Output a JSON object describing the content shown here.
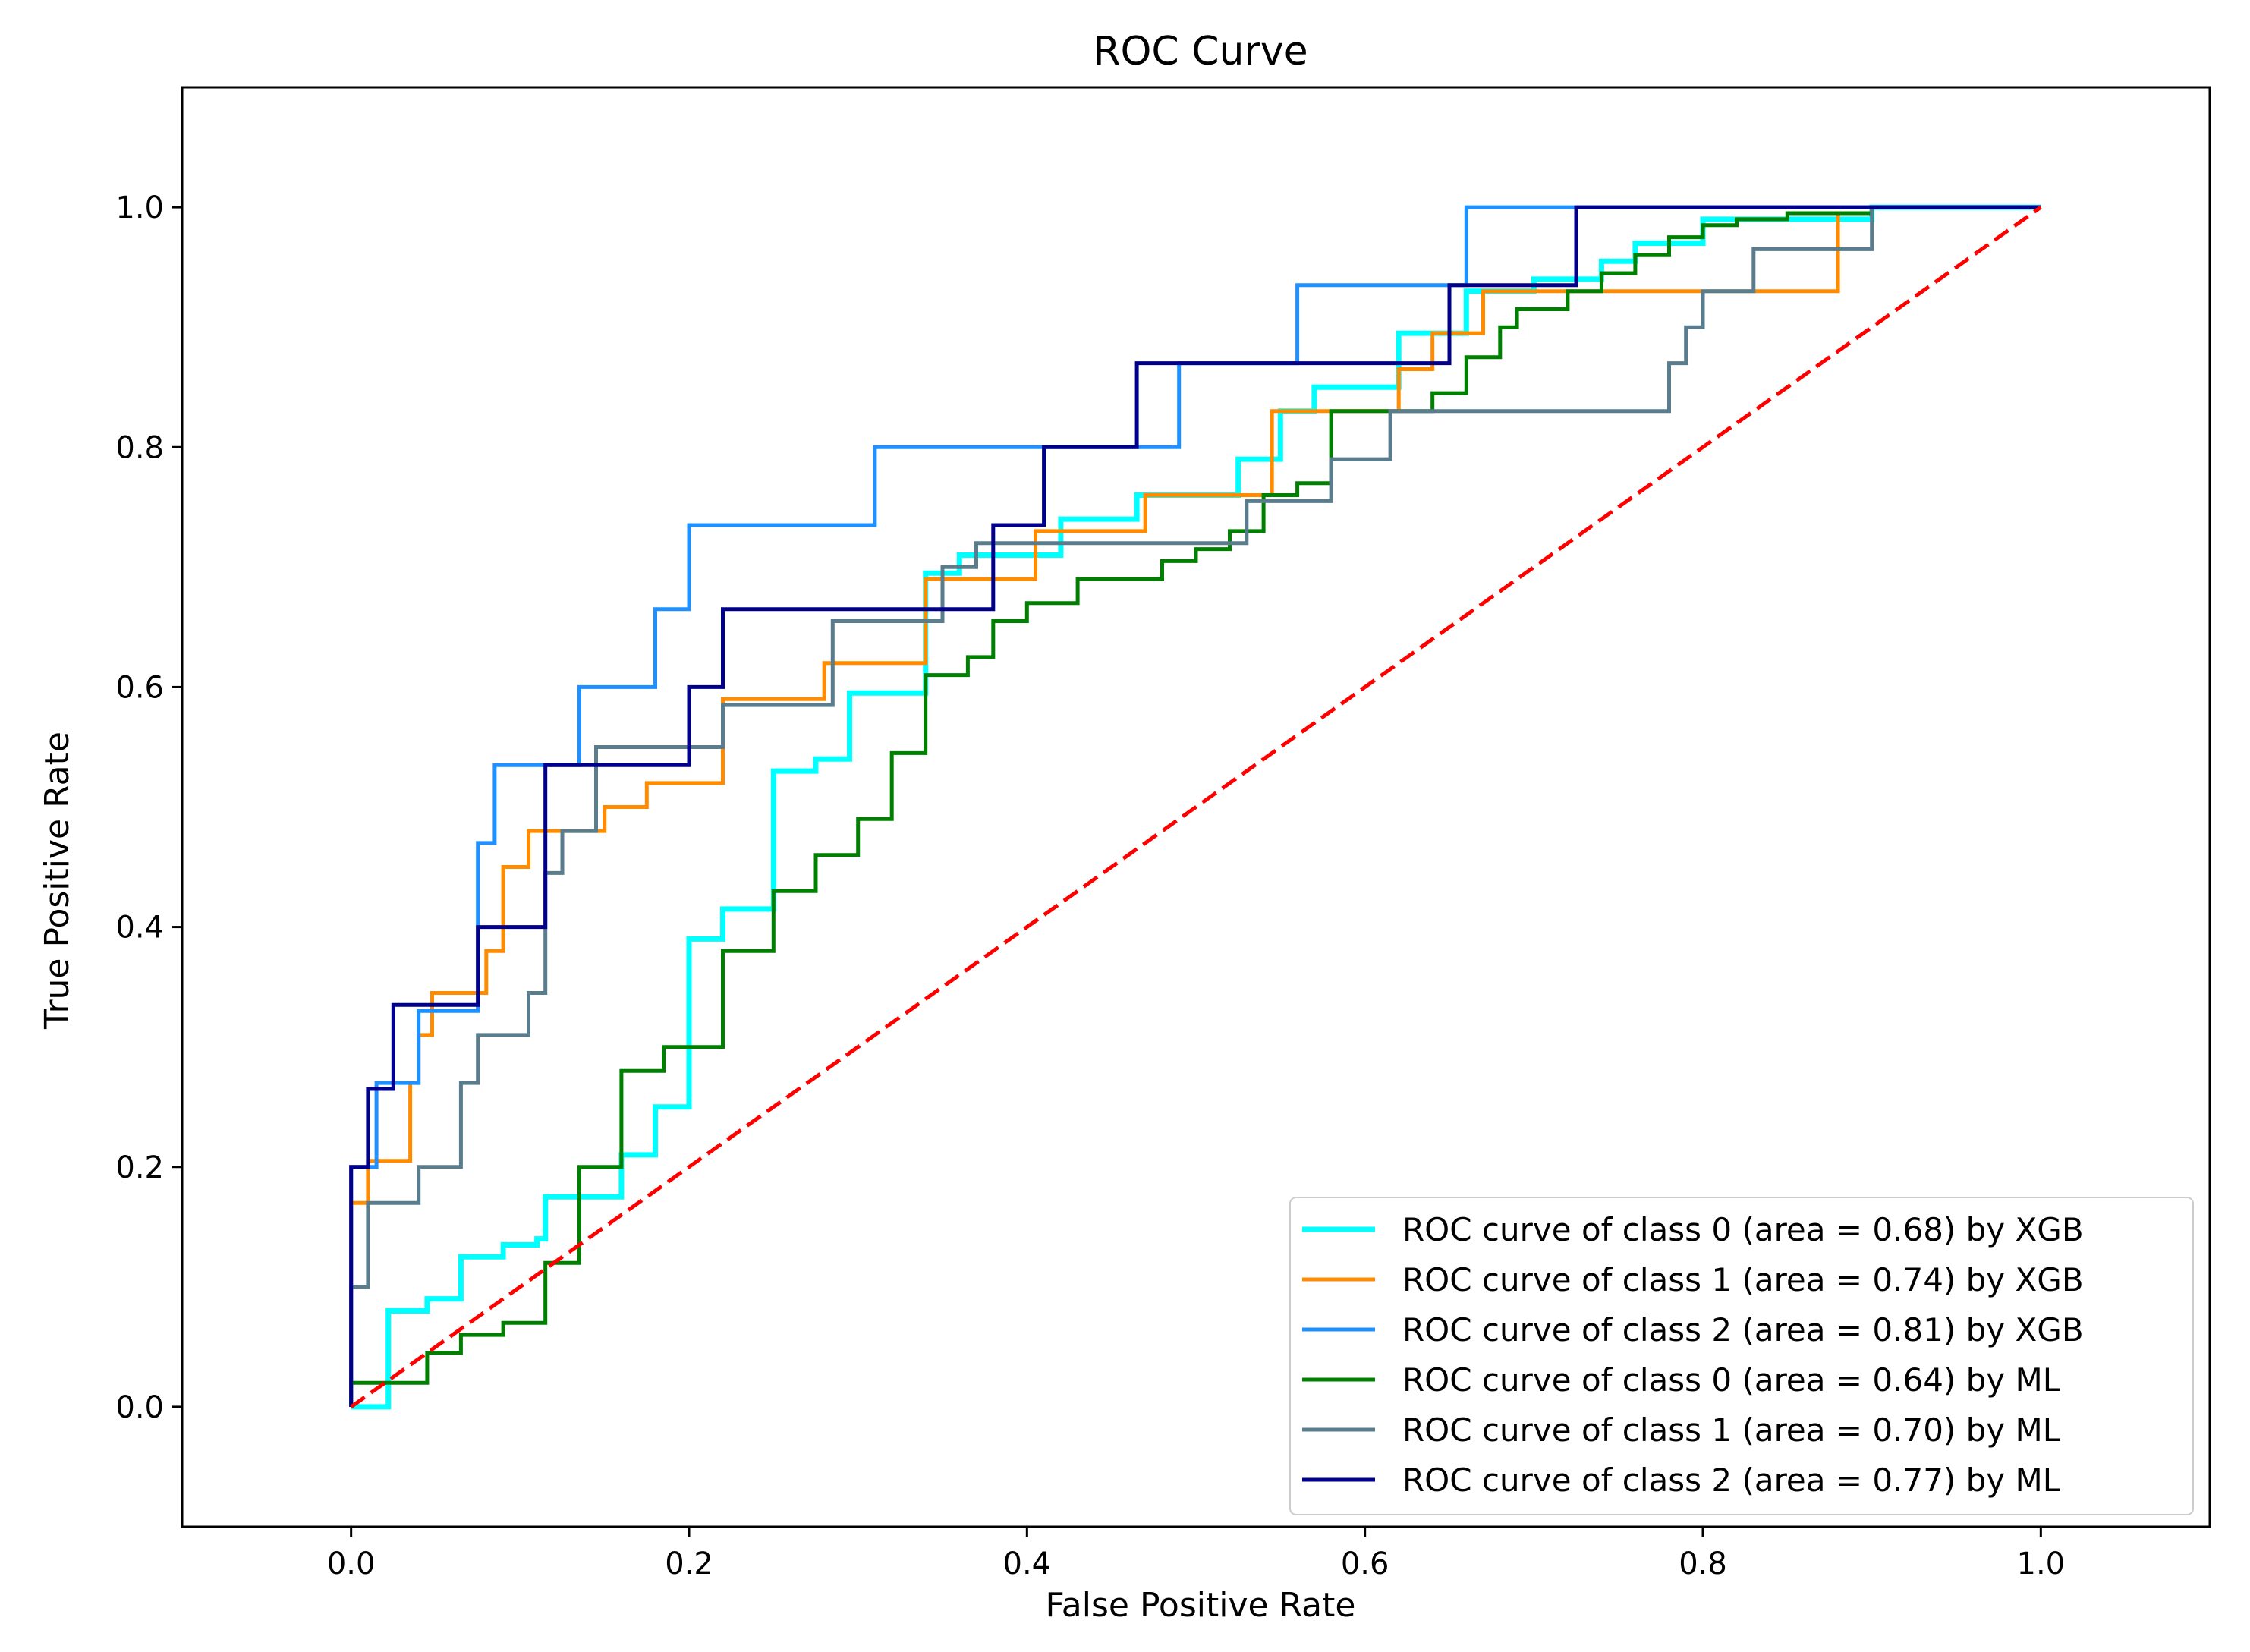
{
  "chart_data": {
    "type": "line",
    "title": "ROC Curve",
    "xlabel": "False Positive Rate",
    "ylabel": "True Positive Rate",
    "xlim": [
      -0.1,
      1.1
    ],
    "ylim": [
      -0.1,
      1.1
    ],
    "xticks": [
      0.0,
      0.2,
      0.4,
      0.6,
      0.8,
      1.0
    ],
    "xtick_labels": [
      "0.0",
      "0.2",
      "0.4",
      "0.6",
      "0.8",
      "1.0"
    ],
    "yticks": [
      0.0,
      0.2,
      0.4,
      0.6,
      0.8,
      1.0
    ],
    "ytick_labels": [
      "0.0",
      "0.2",
      "0.4",
      "0.6",
      "0.8",
      "1.0"
    ],
    "grid": false,
    "legend_position": "lower-right",
    "diagonal": {
      "x": [
        0,
        1
      ],
      "y": [
        0,
        1
      ],
      "color": "#ff0000",
      "style": "dashed"
    },
    "series": [
      {
        "name": "ROC curve of class 0 (area = 0.68) by XGB",
        "color": "#00ffff",
        "x": [
          0.0,
          0.0,
          0.022,
          0.022,
          0.045,
          0.045,
          0.065,
          0.065,
          0.09,
          0.09,
          0.11,
          0.11,
          0.115,
          0.115,
          0.16,
          0.16,
          0.18,
          0.18,
          0.2,
          0.2,
          0.22,
          0.22,
          0.25,
          0.25,
          0.275,
          0.275,
          0.295,
          0.295,
          0.34,
          0.34,
          0.36,
          0.36,
          0.42,
          0.42,
          0.465,
          0.465,
          0.525,
          0.525,
          0.55,
          0.55,
          0.57,
          0.57,
          0.62,
          0.62,
          0.66,
          0.66,
          0.7,
          0.7,
          0.74,
          0.74,
          0.76,
          0.76,
          0.8,
          0.8,
          0.9,
          0.9,
          1.0
        ],
        "y": [
          0.0,
          0.0,
          0.0,
          0.08,
          0.08,
          0.09,
          0.09,
          0.125,
          0.125,
          0.135,
          0.135,
          0.14,
          0.14,
          0.175,
          0.175,
          0.21,
          0.21,
          0.25,
          0.25,
          0.39,
          0.39,
          0.415,
          0.415,
          0.53,
          0.53,
          0.54,
          0.54,
          0.595,
          0.595,
          0.695,
          0.695,
          0.71,
          0.71,
          0.74,
          0.74,
          0.76,
          0.76,
          0.79,
          0.79,
          0.83,
          0.83,
          0.85,
          0.85,
          0.895,
          0.895,
          0.93,
          0.93,
          0.94,
          0.94,
          0.955,
          0.955,
          0.97,
          0.97,
          0.99,
          0.99,
          1.0,
          1.0
        ]
      },
      {
        "name": "ROC curve of class 1 (area = 0.74) by XGB",
        "color": "#ff8c00",
        "x": [
          0.0,
          0.0,
          0.01,
          0.01,
          0.035,
          0.035,
          0.04,
          0.04,
          0.048,
          0.048,
          0.08,
          0.08,
          0.09,
          0.09,
          0.105,
          0.105,
          0.15,
          0.15,
          0.175,
          0.175,
          0.22,
          0.22,
          0.28,
          0.28,
          0.34,
          0.34,
          0.405,
          0.405,
          0.47,
          0.47,
          0.545,
          0.545,
          0.62,
          0.62,
          0.64,
          0.64,
          0.67,
          0.67,
          0.73,
          0.73,
          0.88,
          0.88,
          0.9,
          0.9,
          1.0
        ],
        "y": [
          0.0,
          0.17,
          0.17,
          0.205,
          0.205,
          0.27,
          0.27,
          0.31,
          0.31,
          0.345,
          0.345,
          0.38,
          0.38,
          0.45,
          0.45,
          0.48,
          0.48,
          0.5,
          0.5,
          0.52,
          0.52,
          0.59,
          0.59,
          0.62,
          0.62,
          0.69,
          0.69,
          0.73,
          0.73,
          0.76,
          0.76,
          0.83,
          0.83,
          0.865,
          0.865,
          0.895,
          0.895,
          0.93,
          0.93,
          0.93,
          0.93,
          0.995,
          0.995,
          1.0,
          1.0
        ]
      },
      {
        "name": "ROC curve of class 2 (area = 0.81) by XGB",
        "color": "#1e90ff",
        "x": [
          0.0,
          0.0,
          0.015,
          0.015,
          0.04,
          0.04,
          0.075,
          0.075,
          0.085,
          0.085,
          0.135,
          0.135,
          0.18,
          0.18,
          0.2,
          0.2,
          0.31,
          0.31,
          0.49,
          0.49,
          0.56,
          0.56,
          0.66,
          0.66,
          1.0
        ],
        "y": [
          0.0,
          0.2,
          0.2,
          0.27,
          0.27,
          0.33,
          0.33,
          0.47,
          0.47,
          0.535,
          0.535,
          0.6,
          0.6,
          0.665,
          0.665,
          0.735,
          0.735,
          0.8,
          0.8,
          0.87,
          0.87,
          0.935,
          0.935,
          1.0,
          1.0
        ]
      },
      {
        "name": "ROC curve of class 0 (area = 0.64) by ML",
        "color": "#008000",
        "x": [
          0.0,
          0.0,
          0.045,
          0.045,
          0.065,
          0.065,
          0.09,
          0.09,
          0.115,
          0.115,
          0.135,
          0.135,
          0.16,
          0.16,
          0.185,
          0.185,
          0.22,
          0.22,
          0.25,
          0.25,
          0.275,
          0.275,
          0.3,
          0.3,
          0.32,
          0.32,
          0.34,
          0.34,
          0.365,
          0.365,
          0.38,
          0.38,
          0.4,
          0.4,
          0.43,
          0.43,
          0.48,
          0.48,
          0.5,
          0.5,
          0.52,
          0.52,
          0.54,
          0.54,
          0.56,
          0.56,
          0.58,
          0.58,
          0.64,
          0.64,
          0.66,
          0.66,
          0.68,
          0.68,
          0.69,
          0.69,
          0.72,
          0.72,
          0.74,
          0.74,
          0.76,
          0.76,
          0.78,
          0.78,
          0.8,
          0.8,
          0.82,
          0.82,
          0.85,
          0.85,
          0.9,
          0.9,
          1.0
        ],
        "y": [
          0.0,
          0.02,
          0.02,
          0.045,
          0.045,
          0.06,
          0.06,
          0.07,
          0.07,
          0.12,
          0.12,
          0.2,
          0.2,
          0.28,
          0.28,
          0.3,
          0.3,
          0.38,
          0.38,
          0.43,
          0.43,
          0.46,
          0.46,
          0.49,
          0.49,
          0.545,
          0.545,
          0.61,
          0.61,
          0.625,
          0.625,
          0.655,
          0.655,
          0.67,
          0.67,
          0.69,
          0.69,
          0.705,
          0.705,
          0.715,
          0.715,
          0.73,
          0.73,
          0.76,
          0.76,
          0.77,
          0.77,
          0.83,
          0.83,
          0.845,
          0.845,
          0.875,
          0.875,
          0.9,
          0.9,
          0.915,
          0.915,
          0.93,
          0.93,
          0.945,
          0.945,
          0.96,
          0.96,
          0.975,
          0.975,
          0.985,
          0.985,
          0.99,
          0.99,
          0.995,
          0.995,
          1.0,
          1.0
        ]
      },
      {
        "name": "ROC curve of class 1 (area = 0.70) by ML",
        "color": "#5a7d8e",
        "x": [
          0.0,
          0.0,
          0.01,
          0.01,
          0.04,
          0.04,
          0.065,
          0.065,
          0.075,
          0.075,
          0.105,
          0.105,
          0.115,
          0.115,
          0.125,
          0.125,
          0.145,
          0.145,
          0.22,
          0.22,
          0.285,
          0.285,
          0.35,
          0.35,
          0.37,
          0.37,
          0.42,
          0.42,
          0.53,
          0.53,
          0.58,
          0.58,
          0.615,
          0.615,
          0.695,
          0.695,
          0.78,
          0.78,
          0.79,
          0.79,
          0.8,
          0.8,
          0.83,
          0.83,
          0.9,
          0.9,
          1.0
        ],
        "y": [
          0.0,
          0.1,
          0.1,
          0.17,
          0.17,
          0.2,
          0.2,
          0.27,
          0.27,
          0.31,
          0.31,
          0.345,
          0.345,
          0.445,
          0.445,
          0.48,
          0.48,
          0.55,
          0.55,
          0.585,
          0.585,
          0.655,
          0.655,
          0.7,
          0.7,
          0.72,
          0.72,
          0.72,
          0.72,
          0.755,
          0.755,
          0.79,
          0.79,
          0.83,
          0.83,
          0.83,
          0.83,
          0.87,
          0.87,
          0.9,
          0.9,
          0.93,
          0.93,
          0.965,
          0.965,
          1.0,
          1.0
        ]
      },
      {
        "name": "ROC curve of class 2 (area = 0.77) by ML",
        "color": "#00008b",
        "x": [
          0.0,
          0.0,
          0.01,
          0.01,
          0.025,
          0.025,
          0.075,
          0.075,
          0.115,
          0.115,
          0.2,
          0.2,
          0.22,
          0.22,
          0.38,
          0.38,
          0.41,
          0.41,
          0.465,
          0.465,
          0.65,
          0.65,
          0.725,
          0.725,
          1.0
        ],
        "y": [
          0.0,
          0.2,
          0.2,
          0.265,
          0.265,
          0.335,
          0.335,
          0.4,
          0.4,
          0.535,
          0.535,
          0.6,
          0.6,
          0.665,
          0.665,
          0.735,
          0.735,
          0.8,
          0.8,
          0.87,
          0.87,
          0.935,
          0.935,
          1.0,
          1.0
        ]
      }
    ]
  }
}
